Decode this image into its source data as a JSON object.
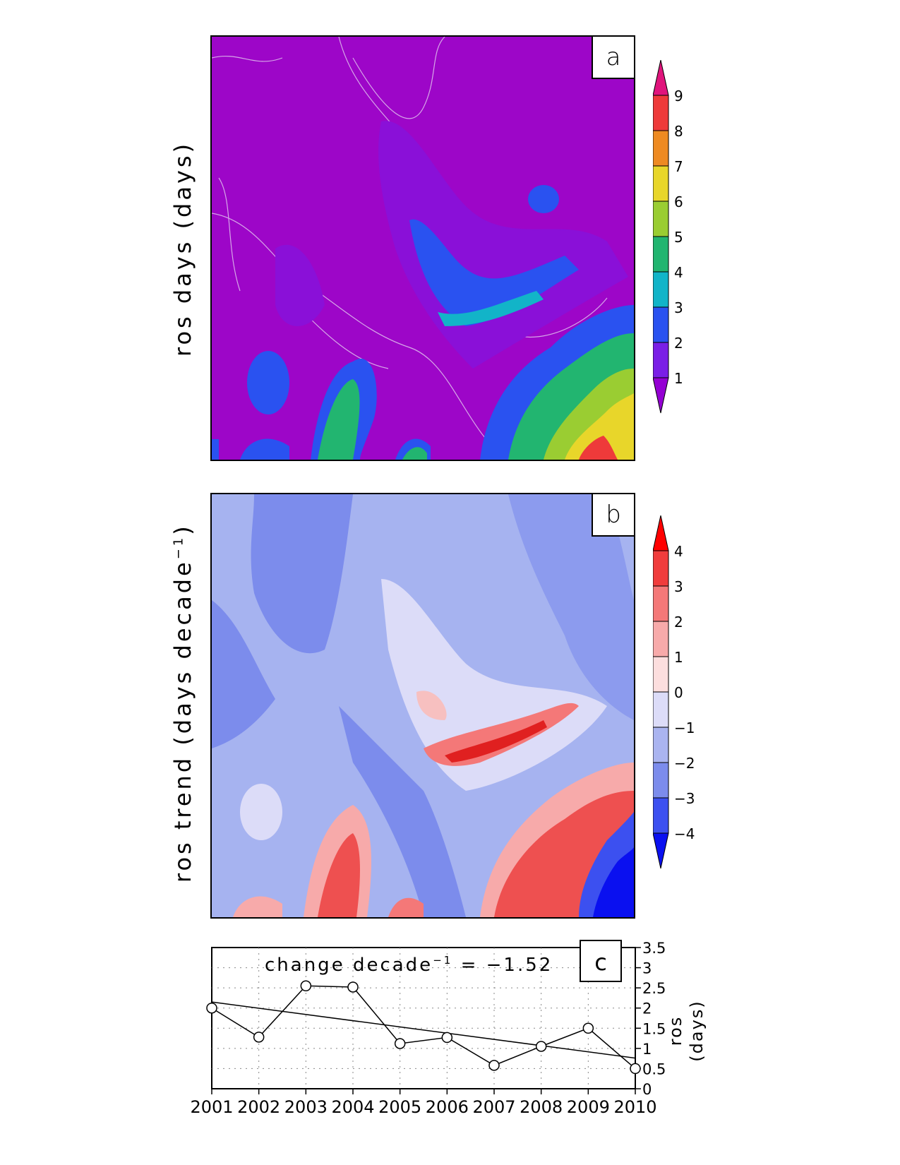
{
  "panel_a": {
    "letter": "a",
    "ylabel": "ros  days  (days)",
    "colorbar": {
      "labels": [
        "1",
        "2",
        "3",
        "4",
        "5",
        "6",
        "7",
        "8",
        "9"
      ],
      "colors": [
        "#9400d3",
        "#7a1fe6",
        "#2a52f0",
        "#12b4c8",
        "#22b570",
        "#9acd32",
        "#e8d62a",
        "#ee8a22",
        "#ee3a3a",
        "#e0147c"
      ]
    },
    "background_color": "#9d06c8"
  },
  "panel_b": {
    "letter": "b",
    "ylabel": "ros  trend  (days  decade",
    "ylabel_sup": "−1",
    "ylabel_end": ")",
    "colorbar": {
      "labels": [
        "4",
        "3",
        "2",
        "1",
        "0",
        "−1",
        "−2",
        "−3",
        "−4"
      ],
      "colors": [
        "#ff0000",
        "#f03c3c",
        "#f47878",
        "#f7aaaa",
        "#fcdede",
        "#dcdcf8",
        "#aab4f0",
        "#7c8cec",
        "#3c50f0",
        "#0a10f0"
      ]
    },
    "background_color": "#a6b3f0"
  },
  "panel_c": {
    "letter": "c",
    "annotation_main": "change  decade",
    "annotation_sup": "−1",
    "annotation_end": "  =  −1.52",
    "ylabel_line1": "ros",
    "ylabel_line2": "(days)"
  },
  "chart_data": [
    {
      "type": "heatmap",
      "title": "",
      "colorbar_ticks": [
        1,
        2,
        3,
        4,
        5,
        6,
        7,
        8,
        9
      ],
      "ylabel": "ros  days  (days)"
    },
    {
      "type": "heatmap",
      "title": "",
      "colorbar_ticks": [
        4,
        3,
        2,
        1,
        0,
        -1,
        -2,
        -3,
        -4
      ],
      "ylabel": "ros  trend  (days  decade−1)"
    },
    {
      "type": "line",
      "x": [
        2001,
        2002,
        2003,
        2004,
        2005,
        2006,
        2007,
        2008,
        2009,
        2010
      ],
      "x_tick_labels": [
        "2001",
        "2002",
        "2003",
        "2004",
        "2005",
        "2006",
        "2007",
        "2008",
        "2009",
        "2010"
      ],
      "series": [
        {
          "values": [
            2.0,
            1.28,
            2.55,
            2.52,
            1.12,
            1.27,
            0.58,
            1.05,
            1.5,
            0.5
          ],
          "marker": "circle"
        }
      ],
      "trend_line": {
        "start": 2.15,
        "end": 0.76
      },
      "ylim": [
        0,
        3.5
      ],
      "y_ticks": [
        0,
        0.5,
        1,
        1.5,
        2,
        2.5,
        3,
        3.5
      ],
      "y_tick_labels": [
        "0",
        "0.5",
        "1",
        "1.5",
        "2",
        "2.5",
        "3",
        "3.5"
      ],
      "grid": true,
      "ylabel": "ros (days)"
    }
  ]
}
